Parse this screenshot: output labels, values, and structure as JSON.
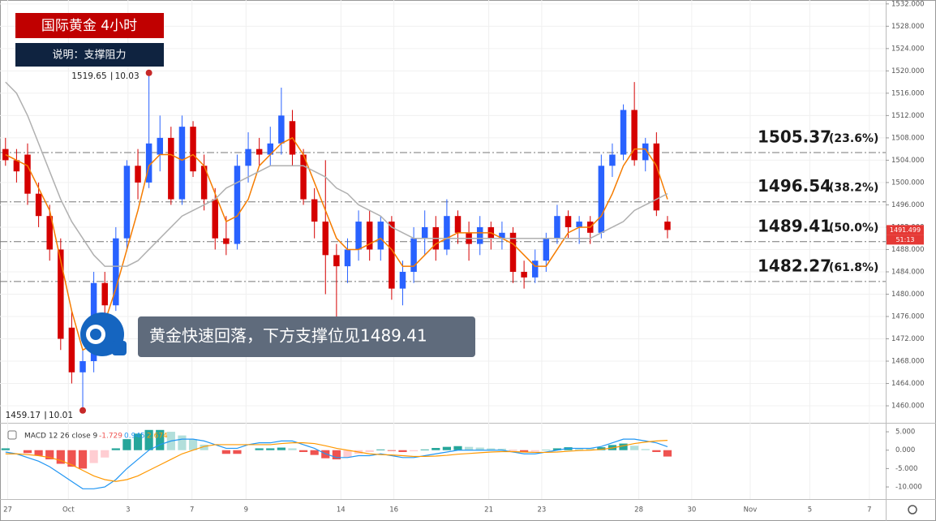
{
  "chart_data": [
    {
      "type": "candlestick",
      "title": "国际黄金 4小时",
      "subtitle": "说明：支撑阻力",
      "callout": "黄金快速回落，下方支撑位见1489.41",
      "open": [
        1506,
        1504,
        1505,
        1498,
        1494,
        1488,
        1474,
        1466,
        1468,
        1482,
        1478,
        1490,
        1503,
        1500,
        1505,
        1508,
        1497,
        1510,
        1503,
        1497,
        1490,
        1489,
        1503,
        1506,
        1505,
        1507,
        1511,
        1505,
        1497,
        1493,
        1487,
        1485,
        1488,
        1493,
        1488,
        1493,
        1481,
        1484,
        1490,
        1492,
        1488,
        1494,
        1491,
        1489,
        1492,
        1490,
        1491,
        1484,
        1483,
        1486,
        1490,
        1494,
        1492,
        1493,
        1491,
        1503,
        1505,
        1513,
        1504,
        1507,
        1493
      ],
      "high": [
        1508,
        1506,
        1507,
        1500,
        1496,
        1490,
        1477,
        1470,
        1484,
        1484,
        1492,
        1504,
        1506,
        1519.65,
        1512,
        1510,
        1512,
        1511,
        1505,
        1499,
        1494,
        1505,
        1509,
        1508,
        1510,
        1517,
        1513,
        1506,
        1499,
        1504,
        1489,
        1490,
        1495,
        1495,
        1494,
        1494,
        1486,
        1492,
        1495,
        1494,
        1497,
        1495,
        1493,
        1494,
        1493,
        1493,
        1492,
        1486,
        1488,
        1491,
        1496,
        1495,
        1494,
        1494,
        1505,
        1507,
        1514,
        1518,
        1508,
        1509,
        1494
      ],
      "low": [
        1503,
        1500,
        1496,
        1492,
        1486,
        1470,
        1464,
        1459.17,
        1466,
        1476,
        1477,
        1488,
        1497,
        1499,
        1502,
        1496,
        1496,
        1501,
        1495,
        1488,
        1487,
        1488,
        1500,
        1503,
        1503,
        1505,
        1503,
        1496,
        1490,
        1480,
        1476,
        1482,
        1486,
        1486,
        1486,
        1479,
        1478,
        1482,
        1487,
        1486,
        1487,
        1489,
        1486,
        1487,
        1488,
        1488,
        1482,
        1481,
        1482,
        1484,
        1489,
        1490,
        1489,
        1489,
        1490,
        1501,
        1504,
        1503,
        1502,
        1494,
        1490
      ],
      "close": [
        1504,
        1502,
        1498,
        1494,
        1488,
        1472,
        1466,
        1468,
        1482,
        1478,
        1490,
        1503,
        1500,
        1507,
        1508,
        1497,
        1510,
        1502,
        1497,
        1490,
        1489,
        1503,
        1506,
        1505,
        1507,
        1512,
        1505,
        1497,
        1493,
        1487,
        1485,
        1488,
        1493,
        1488,
        1493,
        1481,
        1484,
        1490,
        1492,
        1488,
        1494,
        1491,
        1489,
        1492,
        1490,
        1491,
        1484,
        1483,
        1486,
        1490,
        1494,
        1492,
        1493,
        1491,
        1503,
        1505,
        1513,
        1504,
        1507,
        1495,
        1491.499
      ],
      "up_color": "#2962ff",
      "down_color": "#d50000",
      "lines": [
        {
          "color": "#f57c00",
          "values": [
            1505,
            1504,
            1503,
            1499,
            1495,
            1486,
            1477,
            1470,
            1471,
            1475,
            1481,
            1488,
            1495,
            1503,
            1505,
            1505,
            1504,
            1505,
            1503,
            1498,
            1493,
            1494,
            1497,
            1503,
            1505,
            1507,
            1508,
            1505,
            1500,
            1495,
            1490,
            1488,
            1488,
            1489,
            1490,
            1488,
            1485,
            1485,
            1487,
            1489,
            1490,
            1491,
            1491,
            1491,
            1491,
            1490,
            1489,
            1487,
            1485,
            1485,
            1488,
            1491,
            1492,
            1492,
            1494,
            1498,
            1503,
            1506,
            1506,
            1503,
            1497
          ]
        },
        {
          "color": "#b0b0b0",
          "values": [
            1518,
            1516,
            1512,
            1507,
            1502,
            1497,
            1493,
            1490,
            1487,
            1485,
            1485,
            1485,
            1486,
            1488,
            1490,
            1492,
            1494,
            1495,
            1496,
            1497,
            1499,
            1500,
            1501,
            1502,
            1503,
            1503,
            1503,
            1503,
            1502,
            1501,
            1499,
            1498,
            1496,
            1495,
            1494,
            1492,
            1491,
            1490,
            1490,
            1490,
            1490,
            1490,
            1490,
            1490,
            1490,
            1490,
            1490,
            1490,
            1490,
            1490,
            1490,
            1490,
            1490,
            1490,
            1491,
            1492,
            1493,
            1495,
            1496,
            1497,
            1498
          ]
        }
      ],
      "levels": [
        {
          "value": 1505.37,
          "ratio": "(23.6%)"
        },
        {
          "value": 1496.54,
          "ratio": "(38.2%)"
        },
        {
          "value": 1489.41,
          "ratio": "(50.0%)"
        },
        {
          "value": 1482.27,
          "ratio": "(61.8%)"
        }
      ],
      "annotations": [
        {
          "x": 13,
          "price": 1519.65,
          "date": "10.03"
        },
        {
          "x": 7,
          "price": 1459.17,
          "date": "10.01"
        }
      ],
      "last_price": {
        "value": 1491.499,
        "countdown": "51:13",
        "color": "#e53935"
      },
      "xlim": [
        -0.5,
        80
      ],
      "xticks": [
        {
          "value": 0.2,
          "label": "27"
        },
        {
          "value": 5.7,
          "label": "Oct"
        },
        {
          "value": 11.1,
          "label": "3"
        },
        {
          "value": 16.9,
          "label": "7"
        },
        {
          "value": 21.8,
          "label": "9"
        },
        {
          "value": 30.4,
          "label": "14"
        },
        {
          "value": 35.2,
          "label": "16"
        },
        {
          "value": 43.8,
          "label": "21"
        },
        {
          "value": 48.6,
          "label": "23"
        },
        {
          "value": 57.4,
          "label": "28"
        },
        {
          "value": 62.2,
          "label": "30"
        },
        {
          "value": 67.5,
          "label": "Nov"
        },
        {
          "value": 72.9,
          "label": "5"
        },
        {
          "value": 78.3,
          "label": "7"
        }
      ],
      "ylim": [
        1457.1,
        1532.7
      ],
      "yticks": [
        {
          "value": 1460,
          "label": "1460.000"
        },
        {
          "value": 1464,
          "label": "1464.000"
        },
        {
          "value": 1468,
          "label": "1468.000"
        },
        {
          "value": 1472,
          "label": "1472.000"
        },
        {
          "value": 1476,
          "label": "1476.000"
        },
        {
          "value": 1480,
          "label": "1480.000"
        },
        {
          "value": 1484,
          "label": "1484.000"
        },
        {
          "value": 1488,
          "label": "1488.000"
        },
        {
          "value": 1492,
          "label": "1492.000"
        },
        {
          "value": 1496,
          "label": "1496.000"
        },
        {
          "value": 1500,
          "label": "1500.000"
        },
        {
          "value": 1504,
          "label": "1504.000"
        },
        {
          "value": 1508,
          "label": "1508.000"
        },
        {
          "value": 1512,
          "label": "1512.000"
        },
        {
          "value": 1516,
          "label": "1516.000"
        },
        {
          "value": 1520,
          "label": "1520.000"
        },
        {
          "value": 1524,
          "label": "1524.000"
        },
        {
          "value": 1528,
          "label": "1528.000"
        },
        {
          "value": 1532,
          "label": "1532.000"
        }
      ],
      "grid": true
    },
    {
      "type": "macd",
      "title": "MACD 12 26 close 9",
      "readings": [
        {
          "value": -1.729,
          "color": "#ef5350"
        },
        {
          "value": 0.945,
          "color": "#2196f3"
        },
        {
          "value": 2.674,
          "color": "#ff9800"
        }
      ],
      "series": [
        {
          "style": "histogram",
          "color": "#26a69a",
          "values": [
            0.5,
            0,
            -0.8,
            -1.5,
            -2.5,
            -3.7,
            -4.5,
            -5,
            -3.5,
            -2,
            0.5,
            3,
            4.5,
            5.5,
            5.5,
            5,
            4,
            3,
            1.5,
            0,
            -1,
            -1,
            0,
            0.5,
            0.5,
            0.7,
            0.5,
            -0.5,
            -1.3,
            -2.2,
            -2.5,
            -2,
            -1,
            -0.5,
            0.2,
            -0.2,
            -0.5,
            -0.3,
            0.2,
            0.6,
            0.9,
            1.1,
            0.9,
            0.7,
            0.5,
            0.4,
            -0.1,
            -0.5,
            -0.4,
            0.1,
            0.5,
            0.8,
            0.6,
            0.5,
            0.8,
            1.4,
            1.8,
            1.2,
            0.3,
            -0.5,
            -1.729
          ]
        },
        {
          "style": "line",
          "color": "#2196f3",
          "values": [
            -0.5,
            -1,
            -2,
            -3,
            -4.5,
            -6.5,
            -8.5,
            -10.5,
            -10.5,
            -10,
            -8,
            -5,
            -2.5,
            0,
            1.5,
            2.5,
            3,
            3,
            2.5,
            1.5,
            0.5,
            0.5,
            1.5,
            2,
            2,
            2.5,
            2.5,
            1.5,
            0.5,
            -1,
            -2,
            -2,
            -1.5,
            -1.5,
            -1,
            -1.5,
            -2,
            -2,
            -1.5,
            -1,
            -0.5,
            0,
            0,
            0,
            0,
            0,
            -0.5,
            -1,
            -1,
            -0.5,
            0,
            0.5,
            0.5,
            0.5,
            1,
            2,
            3,
            3,
            2.5,
            2,
            0.945
          ]
        },
        {
          "style": "line",
          "color": "#ff9800",
          "values": [
            -1,
            -1,
            -1.2,
            -1.5,
            -2,
            -2.8,
            -4,
            -5.5,
            -7,
            -8,
            -8.5,
            -8,
            -7,
            -5.5,
            -4,
            -2.5,
            -1,
            0,
            1,
            1.5,
            1.5,
            1.5,
            1.5,
            1.5,
            1.5,
            1.8,
            2,
            2,
            1.8,
            1.2,
            0.5,
            0,
            -0.5,
            -1,
            -1.2,
            -1.3,
            -1.5,
            -1.7,
            -1.7,
            -1.6,
            -1.4,
            -1.1,
            -0.9,
            -0.7,
            -0.5,
            -0.4,
            -0.4,
            -0.5,
            -0.6,
            -0.6,
            -0.5,
            -0.3,
            -0.1,
            0,
            0.2,
            0.6,
            1.2,
            1.8,
            2.2,
            2.5,
            2.674
          ]
        }
      ],
      "xlim": [
        -0.5,
        80
      ],
      "ylim": [
        -13.3,
        7
      ],
      "yticks": [
        {
          "value": 5,
          "label": "5.000"
        },
        {
          "value": 0,
          "label": "0.000"
        },
        {
          "value": -5,
          "label": "-5.000"
        },
        {
          "value": -10,
          "label": "-10.000"
        }
      ]
    }
  ]
}
